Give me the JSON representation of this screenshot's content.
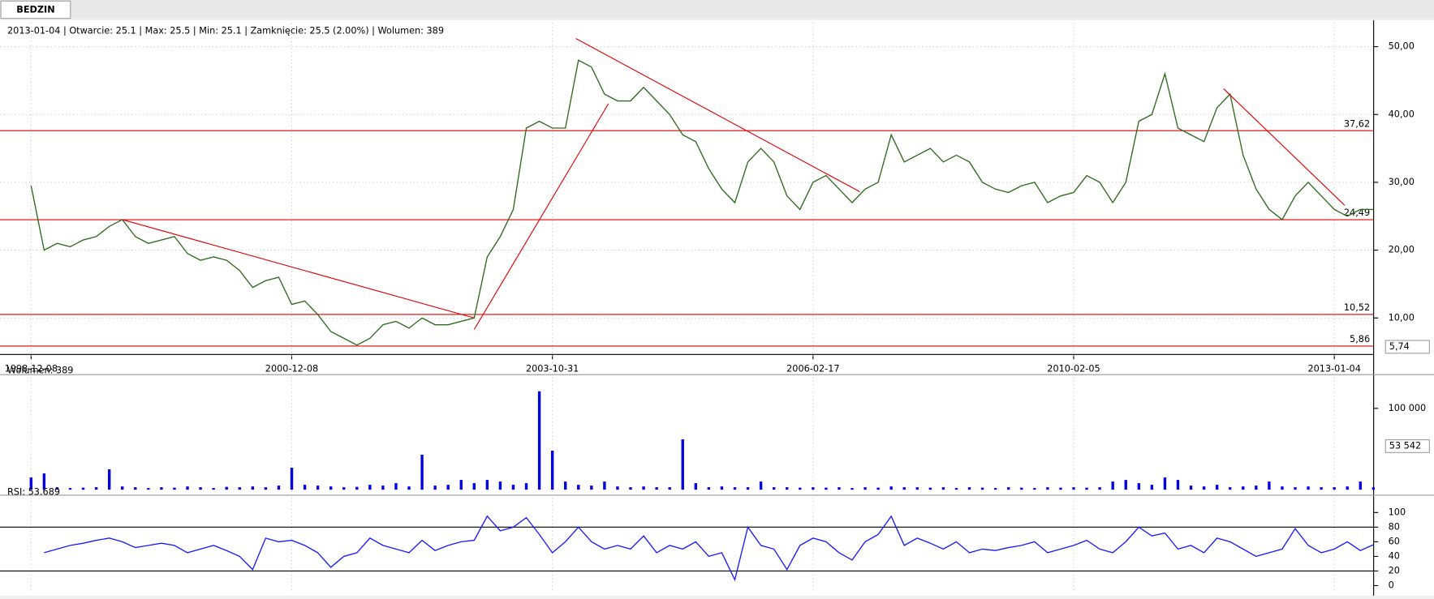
{
  "tab": "BEDZIN",
  "chart_data": [
    {
      "type": "line",
      "title": "2013-01-04 | Otwarcie: 25.1 | Max: 25.5 | Min: 25.1 | Zamknięcie: 25.5 (2.00%)  | Wolumen: 389",
      "categories": [
        "1998-12-08",
        null,
        null,
        null,
        null,
        null,
        null,
        null,
        null,
        null,
        null,
        null,
        null,
        null,
        null,
        null,
        null,
        null,
        null,
        null,
        "2000-12-08",
        null,
        null,
        null,
        null,
        null,
        null,
        null,
        null,
        null,
        null,
        null,
        null,
        null,
        null,
        null,
        null,
        null,
        null,
        null,
        "2003-10-31",
        null,
        null,
        null,
        null,
        null,
        null,
        null,
        null,
        null,
        null,
        null,
        null,
        null,
        null,
        null,
        null,
        null,
        null,
        null,
        "2006-02-17",
        null,
        null,
        null,
        null,
        null,
        null,
        null,
        null,
        null,
        null,
        null,
        null,
        null,
        null,
        null,
        null,
        null,
        null,
        null,
        "2010-02-05",
        null,
        null,
        null,
        null,
        null,
        null,
        null,
        null,
        null,
        null,
        null,
        null,
        null,
        null,
        null,
        null,
        null,
        null,
        null,
        "2013-01-04",
        null,
        null,
        null
      ],
      "series": [
        {
          "color": "#2e6b1e",
          "values": [
            29.5,
            20,
            21,
            20.5,
            21.5,
            22,
            23.5,
            24.5,
            22,
            21,
            21.5,
            22,
            19.5,
            18.5,
            19,
            18.5,
            17,
            14.5,
            15.5,
            16,
            12,
            12.5,
            10.5,
            8,
            7,
            6,
            7,
            9,
            9.5,
            8.5,
            10,
            9,
            9,
            9.5,
            10,
            19,
            22,
            26,
            38,
            39,
            38,
            38,
            48,
            47,
            43,
            42,
            42,
            44,
            42,
            40,
            37,
            36,
            32,
            29,
            27,
            33,
            35,
            33,
            28,
            26,
            30,
            31,
            29,
            27,
            29,
            30,
            37,
            33,
            34,
            35,
            33,
            34,
            33,
            30,
            29,
            28.5,
            29.5,
            30,
            27,
            28,
            28.5,
            31,
            30,
            27,
            30,
            39,
            40,
            46,
            38,
            37,
            36,
            41,
            43,
            34,
            29,
            26,
            24.5,
            28,
            30,
            28,
            26,
            25,
            26,
            26
          ]
        }
      ],
      "ylim": [
        4.61,
        53.5
      ],
      "yticks": [
        {
          "value": 10,
          "label": "10,00"
        },
        {
          "value": 20,
          "label": "20,00"
        },
        {
          "value": 30,
          "label": "30,00"
        },
        {
          "value": 40,
          "label": "40,00"
        },
        {
          "value": 50,
          "label": "50,00"
        }
      ],
      "grid": true,
      "levels": [
        {
          "value": 37.62,
          "label": "37,62"
        },
        {
          "value": 24.49,
          "label": "24,49"
        },
        {
          "value": 10.52,
          "label": "10,52"
        },
        {
          "value": 5.86,
          "label": "5,86"
        }
      ],
      "level_color": "#e00000",
      "trendlines": [
        {
          "x": [
            7,
            34
          ],
          "y": [
            24.5,
            10
          ]
        },
        {
          "x": [
            34,
            44.3
          ],
          "y": [
            8.3,
            41.6
          ]
        },
        {
          "x": [
            41.8,
            63.6
          ],
          "y": [
            51.2,
            28.6
          ]
        },
        {
          "x": [
            91.5,
            100.8
          ],
          "y": [
            43.8,
            26.6
          ]
        }
      ],
      "cursor": {
        "value": 5.74,
        "label": "5,74"
      }
    },
    {
      "type": "bar",
      "title": "Wolumen: 389",
      "color": "#0000e0",
      "values": [
        15000,
        20000,
        3000,
        2000,
        2500,
        3000,
        25000,
        4000,
        3000,
        2000,
        3000,
        2500,
        4000,
        3000,
        2000,
        3500,
        3000,
        4000,
        3000,
        5000,
        27000,
        6000,
        5000,
        4000,
        3000,
        3500,
        6000,
        5000,
        8000,
        4000,
        43000,
        5000,
        6000,
        12000,
        8000,
        12000,
        10000,
        6000,
        8000,
        121000,
        48000,
        10000,
        6000,
        5000,
        10000,
        4000,
        3000,
        4000,
        3000,
        3000,
        62000,
        8000,
        3000,
        4000,
        3000,
        3000,
        10000,
        3000,
        3000,
        2500,
        3000,
        2500,
        3000,
        2000,
        3000,
        2500,
        4000,
        3000,
        3000,
        2500,
        3000,
        2000,
        3000,
        2500,
        2000,
        3000,
        2500,
        2000,
        3000,
        2500,
        3000,
        2500,
        3000,
        10000,
        12000,
        8000,
        6000,
        15000,
        12000,
        5000,
        4000,
        6000,
        3000,
        4000,
        5000,
        10000,
        4000,
        3000,
        4000,
        3000,
        3000,
        4000,
        10000,
        3000
      ],
      "ylim": [
        0,
        139300
      ],
      "yticks": [
        {
          "value": 100000,
          "label": "100 000"
        }
      ],
      "cursor": {
        "value": 53542,
        "label": "53 542"
      }
    },
    {
      "type": "line",
      "title": "RSI: 53.689",
      "series": [
        {
          "color": "#1a1aff",
          "values": [
            null,
            45,
            50,
            55,
            58,
            62,
            65,
            60,
            52,
            55,
            58,
            55,
            45,
            50,
            55,
            48,
            40,
            22,
            65,
            60,
            62,
            55,
            45,
            25,
            40,
            45,
            65,
            55,
            50,
            45,
            62,
            48,
            55,
            60,
            62,
            95,
            75,
            80,
            93,
            70,
            45,
            60,
            80,
            60,
            50,
            55,
            50,
            68,
            45,
            55,
            50,
            60,
            40,
            45,
            8,
            80,
            55,
            50,
            22,
            55,
            65,
            60,
            45,
            35,
            60,
            70,
            95,
            55,
            65,
            58,
            50,
            60,
            45,
            50,
            48,
            52,
            55,
            60,
            45,
            50,
            55,
            62,
            50,
            45,
            60,
            80,
            68,
            72,
            50,
            55,
            45,
            65,
            60,
            50,
            40,
            45,
            50,
            78,
            55,
            45,
            50,
            60,
            48,
            56
          ]
        }
      ],
      "ylim": [
        -8.75,
        120
      ],
      "yticks": [
        0,
        20,
        40,
        60,
        80,
        100
      ],
      "levels": [
        80,
        20
      ],
      "level_color": "#000000"
    }
  ]
}
